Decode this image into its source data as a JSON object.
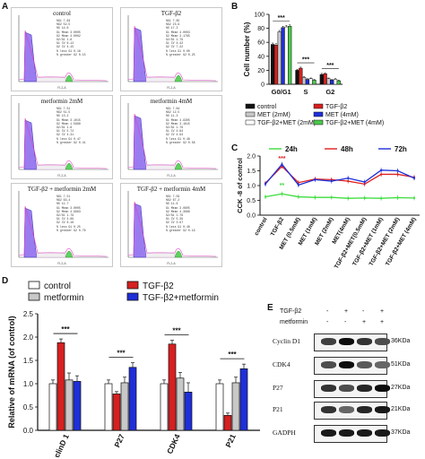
{
  "panels": {
    "A": "A",
    "B": "B",
    "C": "C",
    "D": "D",
    "E": "E"
  },
  "flow": {
    "xlabel": "FL2-A",
    "stat_labels": [
      "%G1",
      "%G2",
      "%S",
      "G1 Mean",
      "G2 Mean",
      "G2/G1",
      "G1 CV",
      "G2 CV",
      "% less G1",
      "% greater G2"
    ],
    "panels": [
      {
        "title": "control",
        "stats": [
          "7.63",
          "52.5",
          "14.6",
          "3.0005",
          "4.0002",
          "1.8",
          "6.12",
          "4.15",
          "0.18",
          "0.15"
        ]
      },
      {
        "title": "TGF-β2",
        "stats": [
          "7.65",
          "23.9",
          "17.3",
          "4.0003",
          "3.1785",
          "1.79",
          "4.42",
          "7.22",
          "0.00",
          "0.25"
        ]
      },
      {
        "title": "metformin 2mM",
        "stats": [
          "7.51",
          "51.5",
          "13.2",
          "3.1015",
          "1.5988",
          "1.8",
          "5.72",
          "4.31",
          "0.47",
          "0.41"
        ]
      },
      {
        "title": "metformin 4mM",
        "stats": [
          "7.64",
          "12.5",
          "11.3",
          "4.9305",
          "3.1815",
          "1.79",
          "4.84",
          "4.94",
          "0.48",
          "0.58"
        ]
      },
      {
        "title": "TGF-β2 + metformin 2mM",
        "stats": [
          "7.51",
          "63.4",
          "11.7",
          "3.0005",
          "4.9983",
          "1.79",
          "4.89",
          "6.16",
          "0.25",
          "0.76"
        ]
      },
      {
        "title": "TGF-β2 + metformin 4mM",
        "stats": [
          "7.59",
          "67.2",
          "11.6",
          "3.0905",
          "4.3986",
          "1.79",
          "5.39",
          "3.97",
          "0.48",
          "0.19"
        ]
      }
    ]
  },
  "chart_data": [
    {
      "id": "B",
      "type": "bar",
      "ylabel": "Cell number (%)",
      "categories": [
        "G0/G1",
        "S",
        "G2"
      ],
      "ylim": [
        0,
        100
      ],
      "yticks": [
        0,
        20,
        40,
        60,
        80,
        100
      ],
      "series": [
        {
          "name": "control",
          "color": "#111111",
          "values": [
            57,
            20,
            14
          ],
          "err": [
            2,
            1.5,
            1.5
          ]
        },
        {
          "name": "TGF-β2",
          "color": "#d62020",
          "values": [
            56,
            23,
            15
          ],
          "err": [
            2,
            1.5,
            1.5
          ]
        },
        {
          "name": "MET (2mM)",
          "color": "#c8c8c8",
          "values": [
            75,
            10,
            8
          ],
          "err": [
            2,
            1,
            1
          ]
        },
        {
          "name": "MET (4mM)",
          "color": "#1f2fd8",
          "values": [
            81,
            7,
            6
          ],
          "err": [
            2,
            1,
            1
          ]
        },
        {
          "name": "TGF-β2+MET (2mM)",
          "color": "#ffffff",
          "values": [
            82,
            8,
            7
          ],
          "err": [
            2,
            1,
            1
          ]
        },
        {
          "name": "TGF-β2+MET (4mM)",
          "color": "#4cc84c",
          "values": [
            83,
            6,
            5
          ],
          "err": [
            2,
            1,
            1
          ]
        }
      ],
      "annotations": [
        "***",
        "***",
        "***"
      ]
    },
    {
      "id": "C",
      "type": "line",
      "ylabel": "CCK -8 of control",
      "categories": [
        "control",
        "TGF-β2",
        "MET (0.5mM)",
        "MET (1mM)",
        "MET (2mM)",
        "MET(4mM)",
        "TGF-β2+MET(0.5mM)",
        "TGF-β2+MET (1mM)",
        "TGF-β2+MET (2mM)",
        "TGF-β2+MET (4mM)"
      ],
      "ylim": [
        0.0,
        2.0
      ],
      "yticks": [
        0.0,
        0.5,
        1.0,
        1.5,
        2.0
      ],
      "series": [
        {
          "name": "24h",
          "color": "#3ddc3d",
          "values": [
            0.62,
            0.72,
            0.62,
            0.6,
            0.6,
            0.57,
            0.58,
            0.57,
            0.59,
            0.58
          ]
        },
        {
          "name": "48h",
          "color": "#e02020",
          "values": [
            1.08,
            1.65,
            1.1,
            1.22,
            1.2,
            1.15,
            1.05,
            1.38,
            1.38,
            1.28
          ]
        },
        {
          "name": "72h",
          "color": "#1f2fd8",
          "values": [
            1.05,
            1.72,
            1.02,
            1.2,
            1.15,
            1.25,
            1.12,
            1.52,
            1.5,
            1.25
          ]
        }
      ],
      "annotations": [
        "***",
        "**"
      ]
    },
    {
      "id": "D",
      "type": "bar",
      "ylabel": "Relative of mRNA (of control)",
      "categories": [
        "CyclinD 1",
        "P27",
        "CDK4",
        "P21"
      ],
      "ylim": [
        0.0,
        2.5
      ],
      "yticks": [
        0.0,
        0.5,
        1.0,
        1.5,
        2.0,
        2.5
      ],
      "series": [
        {
          "name": "control",
          "color": "#ffffff",
          "values": [
            1.0,
            1.0,
            1.0,
            1.0
          ],
          "err": [
            0.08,
            0.08,
            0.08,
            0.08
          ]
        },
        {
          "name": "TGF-β2",
          "color": "#d62020",
          "values": [
            1.88,
            0.78,
            1.85,
            0.32
          ],
          "err": [
            0.08,
            0.05,
            0.08,
            0.05
          ]
        },
        {
          "name": "metformin",
          "color": "#c8c8c8",
          "values": [
            1.08,
            1.02,
            1.12,
            1.02
          ],
          "err": [
            0.15,
            0.12,
            0.12,
            0.12
          ]
        },
        {
          "name": "TGF-β2+metformin",
          "color": "#1f2fd8",
          "values": [
            1.05,
            1.35,
            0.82,
            1.32
          ],
          "err": [
            0.12,
            0.1,
            0.2,
            0.1
          ]
        }
      ],
      "annotations": [
        "***",
        "***",
        "***",
        "***"
      ]
    }
  ],
  "western": {
    "cond_labels": [
      "TGF-β2",
      "metformin"
    ],
    "tgf_signs": [
      "-",
      "+",
      "-",
      "+"
    ],
    "met_signs": [
      "-",
      "-",
      "+",
      "+"
    ],
    "rows": [
      {
        "name": "Cyclin D1",
        "kda": "36KDa",
        "intensity": [
          0.75,
          0.95,
          0.8,
          0.7
        ]
      },
      {
        "name": "CDK4",
        "kda": "51KDa",
        "intensity": [
          0.7,
          0.95,
          0.65,
          0.6
        ]
      },
      {
        "name": "P27",
        "kda": "27KDa",
        "intensity": [
          0.8,
          0.7,
          0.85,
          0.95
        ]
      },
      {
        "name": "P21",
        "kda": "21KDa",
        "intensity": [
          0.8,
          0.6,
          0.85,
          0.9
        ]
      },
      {
        "name": "GADPH",
        "kda": "37KDa",
        "intensity": [
          0.9,
          0.9,
          0.9,
          0.9
        ]
      }
    ]
  }
}
